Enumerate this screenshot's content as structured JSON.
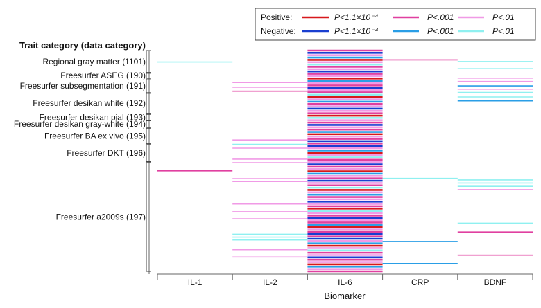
{
  "chart_data": {
    "type": "heatmap",
    "title": "Trait category (data category)",
    "xlabel": "Biomarker",
    "columns": [
      "IL-1",
      "IL-2",
      "IL-6",
      "CRP",
      "BDNF"
    ],
    "categories": [
      {
        "label": "Regional gray matter (1101)",
        "start": 0.0,
        "end": 0.099
      },
      {
        "label": "Freesurfer ASEG (190)",
        "start": 0.103,
        "end": 0.124
      },
      {
        "label": "Freesurfer subsegmentation (191)",
        "start": 0.128,
        "end": 0.191
      },
      {
        "label": "Freesurfer desikan white (192)",
        "start": 0.194,
        "end": 0.284
      },
      {
        "label": "Freesurfer desikan pial (193)",
        "start": 0.289,
        "end": 0.315
      },
      {
        "label": "Freesurfer desikan gray-white (194)",
        "start": 0.318,
        "end": 0.348
      },
      {
        "label": "Freesurfer BA ex vivo (195)",
        "start": 0.352,
        "end": 0.422
      },
      {
        "label": "Freesurfer DKT (196)",
        "start": 0.426,
        "end": 0.503
      },
      {
        "label": "Freesurfer a2009s (197)",
        "start": 0.507,
        "end": 1.0
      }
    ],
    "legend": {
      "position": "top-right",
      "row_labels": [
        "Positive:",
        "Negative:"
      ],
      "thresholds": [
        "P<1.1×10⁻⁴",
        "P<.001",
        "P<.01"
      ],
      "colors": {
        "positive": [
          "#d7191c",
          "#e040a0",
          "#f09ae6"
        ],
        "negative": [
          "#1a3fd0",
          "#2a9ee6",
          "#8ff0f0"
        ]
      }
    },
    "lines": [
      {
        "col": 0,
        "pos": 0.052,
        "level": "neg3"
      },
      {
        "col": 0,
        "pos": 0.545,
        "level": "pos2"
      },
      {
        "col": 1,
        "pos": 0.145,
        "level": "pos3"
      },
      {
        "col": 1,
        "pos": 0.166,
        "level": "pos3"
      },
      {
        "col": 1,
        "pos": 0.184,
        "level": "pos2"
      },
      {
        "col": 1,
        "pos": 0.405,
        "level": "pos3"
      },
      {
        "col": 1,
        "pos": 0.425,
        "level": "neg3"
      },
      {
        "col": 1,
        "pos": 0.442,
        "level": "pos3"
      },
      {
        "col": 1,
        "pos": 0.492,
        "level": "pos3"
      },
      {
        "col": 1,
        "pos": 0.508,
        "level": "pos3"
      },
      {
        "col": 1,
        "pos": 0.58,
        "level": "pos3"
      },
      {
        "col": 1,
        "pos": 0.593,
        "level": "pos3"
      },
      {
        "col": 1,
        "pos": 0.762,
        "level": "pos3"
      },
      {
        "col": 1,
        "pos": 0.73,
        "level": "pos3"
      },
      {
        "col": 1,
        "pos": 0.695,
        "level": "pos3"
      },
      {
        "col": 1,
        "pos": 0.832,
        "level": "neg3"
      },
      {
        "col": 1,
        "pos": 0.845,
        "level": "neg3"
      },
      {
        "col": 1,
        "pos": 0.858,
        "level": "neg3"
      },
      {
        "col": 1,
        "pos": 0.902,
        "level": "pos3"
      },
      {
        "col": 1,
        "pos": 0.935,
        "level": "pos3"
      },
      {
        "col": 3,
        "pos": 0.042,
        "level": "pos2"
      },
      {
        "col": 3,
        "pos": 0.579,
        "level": "neg3"
      },
      {
        "col": 3,
        "pos": 0.865,
        "level": "neg2"
      },
      {
        "col": 3,
        "pos": 0.965,
        "level": "neg2"
      },
      {
        "col": 4,
        "pos": 0.05,
        "level": "neg3"
      },
      {
        "col": 4,
        "pos": 0.082,
        "level": "neg3"
      },
      {
        "col": 4,
        "pos": 0.125,
        "level": "pos3"
      },
      {
        "col": 4,
        "pos": 0.14,
        "level": "pos3"
      },
      {
        "col": 4,
        "pos": 0.16,
        "level": "neg2"
      },
      {
        "col": 4,
        "pos": 0.175,
        "level": "pos3"
      },
      {
        "col": 4,
        "pos": 0.19,
        "level": "neg3"
      },
      {
        "col": 4,
        "pos": 0.21,
        "level": "neg3"
      },
      {
        "col": 4,
        "pos": 0.228,
        "level": "neg2"
      },
      {
        "col": 4,
        "pos": 0.586,
        "level": "neg3"
      },
      {
        "col": 4,
        "pos": 0.6,
        "level": "neg3"
      },
      {
        "col": 4,
        "pos": 0.615,
        "level": "neg3"
      },
      {
        "col": 4,
        "pos": 0.63,
        "level": "pos3"
      },
      {
        "col": 4,
        "pos": 0.782,
        "level": "neg3"
      },
      {
        "col": 4,
        "pos": 0.822,
        "level": "pos2"
      },
      {
        "col": 4,
        "pos": 0.927,
        "level": "pos2"
      }
    ],
    "il6_column": {
      "col": 2,
      "density": "dense",
      "pattern": [
        "pos2",
        "neg1",
        "pos3",
        "neg2",
        "pos1",
        "pos3",
        "neg3",
        "pos2",
        "pos3",
        "neg1",
        "pos2",
        "pos3",
        "pos1",
        "neg2",
        "pos3",
        "pos2",
        "neg1",
        "pos3",
        "pos2",
        "neg3",
        "pos1",
        "pos3",
        "neg2",
        "pos2",
        "pos3",
        "neg1",
        "pos3",
        "pos2",
        "pos1",
        "neg3",
        "pos3",
        "pos2",
        "neg1",
        "pos3",
        "pos2",
        "neg2",
        "pos1",
        "pos3",
        "pos2",
        "neg1"
      ]
    }
  }
}
